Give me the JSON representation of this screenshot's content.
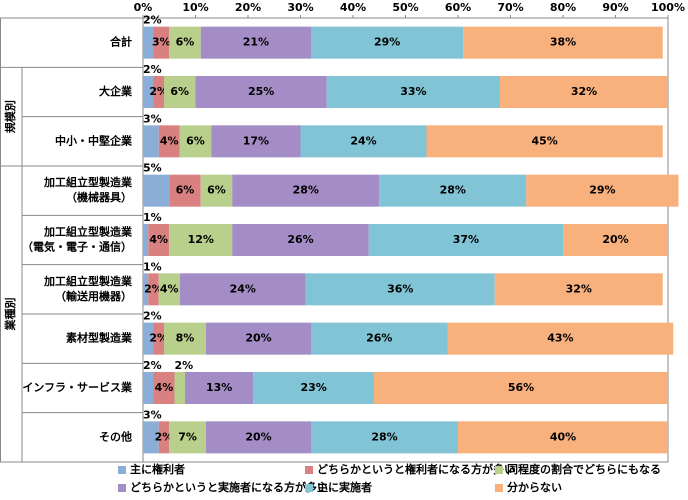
{
  "chart_data": {
    "type": "stacked_barh",
    "categories": [
      "合計",
      "大企業",
      "中小・中堅企業",
      "加工組立型製造業\n（機械器具）",
      "加工組立型製造業\n（電気・電子・通信）",
      "加工組立型製造業\n（輸送用機器）",
      "素材型製造業",
      "インフラ・サービス業",
      "その他"
    ],
    "row_groups": [
      "規模別",
      "業種別"
    ],
    "series": [
      {
        "name": "主に権利者",
        "color": "#8aaed8",
        "values": [
          2,
          2,
          3,
          5,
          1,
          1,
          2,
          2,
          3
        ],
        "value_labels": [
          "2%",
          "2%",
          "3%",
          "5%",
          "1%",
          "1%",
          "2%",
          "2%",
          "3%"
        ]
      },
      {
        "name": "どちらかというと権利者になる方が多い",
        "color": "#d98080",
        "values": [
          3,
          2,
          4,
          6,
          4,
          2,
          2,
          4,
          2
        ],
        "value_labels": [
          "3%",
          "2%",
          "4%",
          "6%",
          "4%",
          "2%",
          "2%",
          "4%",
          "2%"
        ]
      },
      {
        "name": "同程度の割合でどちらにもなる",
        "color": "#b8d08c",
        "values": [
          6,
          6,
          6,
          6,
          12,
          4,
          8,
          2,
          7
        ],
        "value_labels": [
          "6%",
          "6%",
          "6%",
          "6%",
          "12%",
          "4%",
          "8%",
          "2%",
          "7%"
        ]
      },
      {
        "name": "どちらかというと実施者になる方が多い",
        "color": "#a48cc6",
        "values": [
          21,
          25,
          17,
          28,
          26,
          24,
          20,
          13,
          20
        ],
        "value_labels": [
          "21%",
          "25%",
          "17%",
          "28%",
          "26%",
          "24%",
          "20%",
          "13%",
          "20%"
        ]
      },
      {
        "name": "主に実施者",
        "color": "#80c4d6",
        "values": [
          29,
          33,
          24,
          28,
          37,
          36,
          26,
          23,
          28
        ],
        "value_labels": [
          "29%",
          "33%",
          "24%",
          "28%",
          "37%",
          "36%",
          "26%",
          "23%",
          "28%"
        ]
      },
      {
        "name": "分からない",
        "color": "#f8b07c",
        "values": [
          38,
          32,
          45,
          29,
          20,
          32,
          43,
          56,
          40
        ],
        "value_labels": [
          "38%",
          "32%",
          "45%",
          "29%",
          "20%",
          "32%",
          "43%",
          "56%",
          "40%"
        ]
      }
    ],
    "xlim": [
      0,
      100
    ],
    "xticks": [
      {
        "value": 0,
        "label": "0%"
      },
      {
        "value": 10,
        "label": "10%"
      },
      {
        "value": 20,
        "label": "20%"
      },
      {
        "value": 30,
        "label": "30%"
      },
      {
        "value": 40,
        "label": "40%"
      },
      {
        "value": 50,
        "label": "50%"
      },
      {
        "value": 60,
        "label": "60%"
      },
      {
        "value": 70,
        "label": "70%"
      },
      {
        "value": 80,
        "label": "80%"
      },
      {
        "value": 90,
        "label": "90%"
      },
      {
        "value": 100,
        "label": "100%"
      }
    ]
  }
}
